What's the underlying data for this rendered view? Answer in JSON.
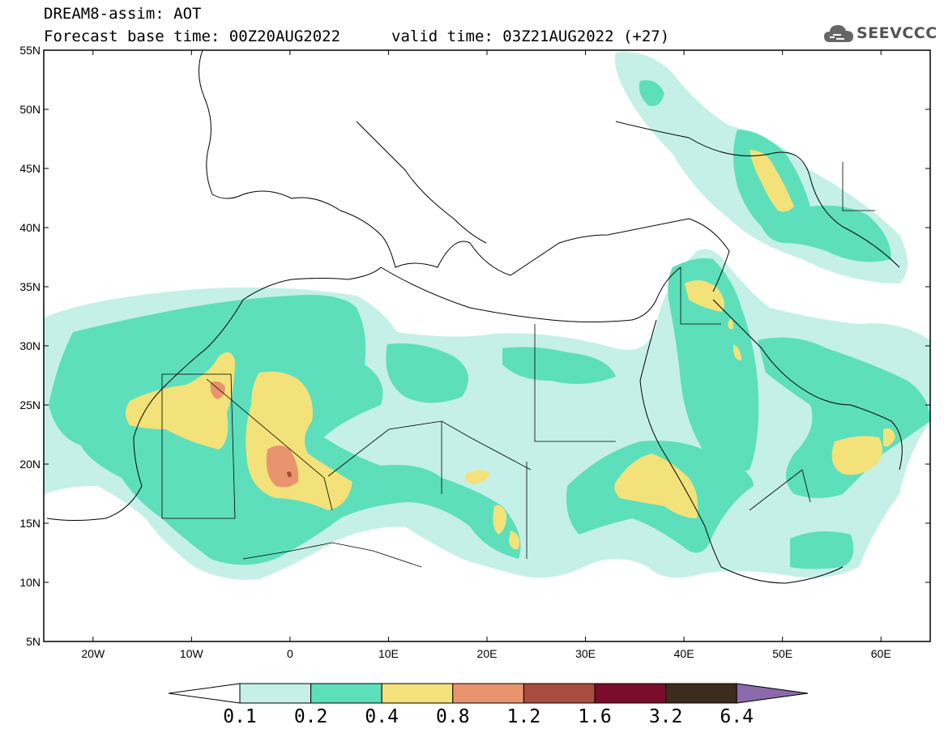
{
  "header": {
    "model_line": "DREAM8-assim: AOT",
    "base_time_line": "Forecast base time: 00Z20AUG2022",
    "valid_time_line": "valid time: 03Z21AUG2022 (+27)"
  },
  "logo": {
    "text": "SEEVCCC",
    "icon": "cloud-icon"
  },
  "map": {
    "lon_range": [
      -25,
      65
    ],
    "lat_range": [
      5,
      55
    ],
    "lon_ticks": [
      {
        "value": -20,
        "label": "20W"
      },
      {
        "value": -10,
        "label": "10W"
      },
      {
        "value": 0,
        "label": "0"
      },
      {
        "value": 10,
        "label": "10E"
      },
      {
        "value": 20,
        "label": "20E"
      },
      {
        "value": 30,
        "label": "30E"
      },
      {
        "value": 40,
        "label": "40E"
      },
      {
        "value": 50,
        "label": "50E"
      },
      {
        "value": 60,
        "label": "60E"
      }
    ],
    "lat_ticks": [
      {
        "value": 5,
        "label": "5N"
      },
      {
        "value": 10,
        "label": "10N"
      },
      {
        "value": 15,
        "label": "15N"
      },
      {
        "value": 20,
        "label": "20N"
      },
      {
        "value": 25,
        "label": "25N"
      },
      {
        "value": 30,
        "label": "30N"
      },
      {
        "value": 35,
        "label": "35N"
      },
      {
        "value": 40,
        "label": "40N"
      },
      {
        "value": 45,
        "label": "45N"
      },
      {
        "value": 50,
        "label": "50N"
      },
      {
        "value": 55,
        "label": "55N"
      }
    ]
  },
  "colorbar": {
    "labels": [
      "0.1",
      "0.2",
      "0.4",
      "0.8",
      "1.2",
      "1.6",
      "3.2",
      "6.4"
    ],
    "colors": [
      "#c4f0e8",
      "#5ddfbb",
      "#f3e27a",
      "#e8946e",
      "#a84c3f",
      "#7a0d2b",
      "#3d2b1b"
    ],
    "under_color": "#ffffff",
    "over_color": "#8b6aab"
  },
  "levels": {
    "l01": "#c4f0e8",
    "l02": "#5ddfbb",
    "l04": "#f3e27a",
    "l08": "#e8946e",
    "l12": "#a84c3f"
  }
}
